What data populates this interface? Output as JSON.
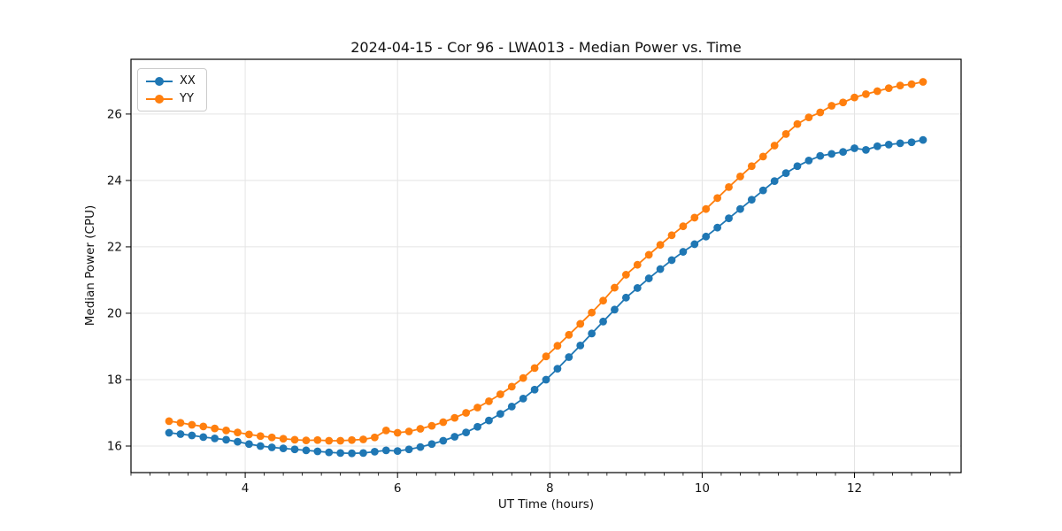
{
  "figure": {
    "title": "2024-04-15 - Cor 96 - LWA013 - Median Power vs. Time"
  },
  "chart_data": {
    "type": "line",
    "title": "2024-04-15 - Cor 96 - LWA013 - Median Power vs. Time",
    "xlabel": "UT Time (hours)",
    "ylabel": "Median Power (CPU)",
    "xlim": [
      2.5,
      13.4
    ],
    "ylim": [
      15.2,
      27.65
    ],
    "x_major_ticks": [
      4,
      6,
      8,
      10,
      12
    ],
    "x_minor_step": 0.25,
    "y_major_ticks": [
      16,
      18,
      20,
      22,
      24,
      26
    ],
    "grid": true,
    "grid_color": "#e4e4e4",
    "spine_color": "#000000",
    "legend_position": "upper-left",
    "marker": "circle",
    "x": [
      3.0,
      3.15,
      3.3,
      3.45,
      3.6,
      3.75,
      3.9,
      4.05,
      4.2,
      4.35,
      4.5,
      4.65,
      4.8,
      4.95,
      5.1,
      5.25,
      5.4,
      5.55,
      5.7,
      5.85,
      6.0,
      6.15,
      6.3,
      6.45,
      6.6,
      6.75,
      6.9,
      7.05,
      7.2,
      7.35,
      7.5,
      7.65,
      7.8,
      7.95,
      8.1,
      8.25,
      8.4,
      8.55,
      8.7,
      8.85,
      9.0,
      9.15,
      9.3,
      9.45,
      9.6,
      9.75,
      9.9,
      10.05,
      10.2,
      10.35,
      10.5,
      10.65,
      10.8,
      10.95,
      11.1,
      11.25,
      11.4,
      11.55,
      11.7,
      11.85,
      12.0,
      12.15,
      12.3,
      12.45,
      12.6,
      12.75,
      12.9
    ],
    "series": [
      {
        "name": "XX",
        "color": "#1f77b4",
        "values": [
          16.4,
          16.36,
          16.32,
          16.27,
          16.23,
          16.19,
          16.13,
          16.06,
          16.0,
          15.96,
          15.93,
          15.9,
          15.87,
          15.84,
          15.81,
          15.79,
          15.78,
          15.79,
          15.83,
          15.87,
          15.85,
          15.9,
          15.97,
          16.06,
          16.16,
          16.28,
          16.41,
          16.58,
          16.77,
          16.97,
          17.19,
          17.43,
          17.7,
          18.0,
          18.33,
          18.68,
          19.03,
          19.39,
          19.75,
          20.11,
          20.47,
          20.76,
          21.05,
          21.33,
          21.6,
          21.85,
          22.08,
          22.31,
          22.58,
          22.86,
          23.14,
          23.42,
          23.7,
          23.98,
          24.22,
          24.43,
          24.6,
          24.74,
          24.8,
          24.86,
          24.97,
          24.92,
          25.03,
          25.08,
          25.12,
          25.15,
          25.22
        ]
      },
      {
        "name": "YY",
        "color": "#ff7f0e",
        "values": [
          16.75,
          16.7,
          16.64,
          16.59,
          16.53,
          16.47,
          16.41,
          16.35,
          16.3,
          16.26,
          16.22,
          16.19,
          16.17,
          16.18,
          16.16,
          16.16,
          16.18,
          16.2,
          16.26,
          16.47,
          16.4,
          16.44,
          16.52,
          16.61,
          16.72,
          16.85,
          17.0,
          17.16,
          17.35,
          17.56,
          17.79,
          18.05,
          18.35,
          18.7,
          19.02,
          19.35,
          19.68,
          20.02,
          20.38,
          20.77,
          21.16,
          21.46,
          21.76,
          22.06,
          22.35,
          22.62,
          22.88,
          23.14,
          23.47,
          23.8,
          24.12,
          24.43,
          24.72,
          25.05,
          25.4,
          25.7,
          25.9,
          26.05,
          26.25,
          26.35,
          26.5,
          26.6,
          26.69,
          26.78,
          26.86,
          26.9,
          26.97
        ]
      }
    ]
  }
}
